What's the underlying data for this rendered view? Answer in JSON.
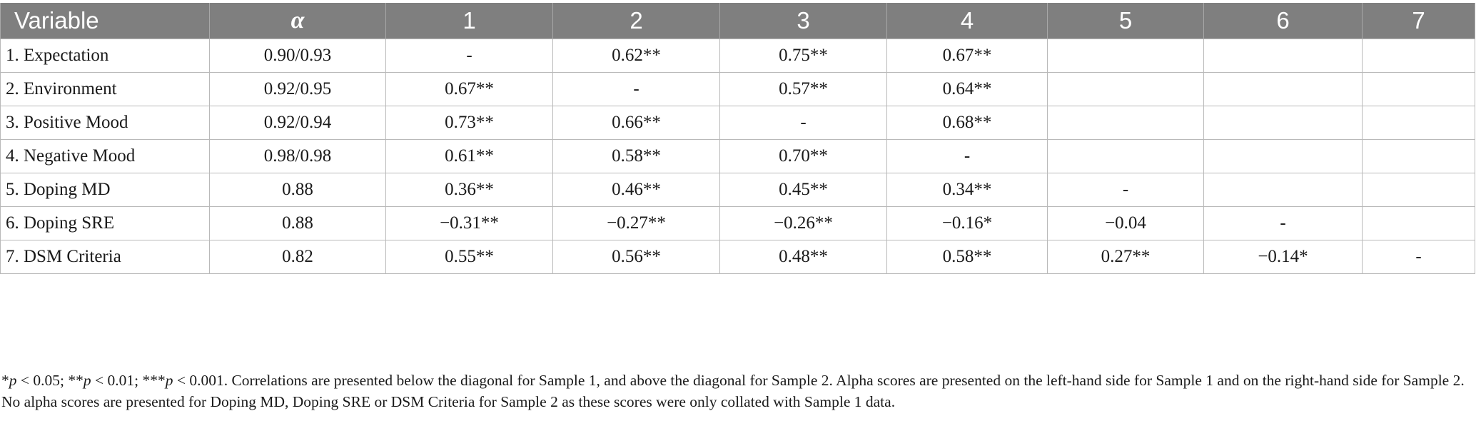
{
  "table": {
    "headers": [
      "Variable",
      "α",
      "1",
      "2",
      "3",
      "4",
      "5",
      "6",
      "7"
    ],
    "rows": [
      [
        "1.  Expectation",
        "0.90/0.93",
        "-",
        "0.62**",
        "0.75**",
        "0.67**",
        "",
        "",
        ""
      ],
      [
        "2.  Environment",
        "0.92/0.95",
        "0.67**",
        "-",
        "0.57**",
        "0.64**",
        "",
        "",
        ""
      ],
      [
        "3.  Positive Mood",
        "0.92/0.94",
        "0.73**",
        "0.66**",
        "-",
        "0.68**",
        "",
        "",
        ""
      ],
      [
        "4.  Negative Mood",
        "0.98/0.98",
        "0.61**",
        "0.58**",
        "0.70**",
        "-",
        "",
        "",
        ""
      ],
      [
        "5.  Doping MD",
        "0.88",
        "0.36**",
        "0.46**",
        "0.45**",
        "0.34**",
        "-",
        "",
        ""
      ],
      [
        "6.  Doping SRE",
        "0.88",
        "−0.31**",
        "−0.27**",
        "−0.26**",
        "−0.16*",
        "−0.04",
        "-",
        ""
      ],
      [
        "7.  DSM Criteria",
        "0.82",
        "0.55**",
        "0.56**",
        "0.48**",
        "0.58**",
        "0.27**",
        "−0.14*",
        "-"
      ]
    ]
  },
  "note": {
    "p_prefix_1": "*",
    "p_1": "p",
    "p_text_1": " < 0.05; **",
    "p_2": "p",
    "p_text_2": " < 0.01; ***",
    "p_3": "p",
    "p_text_3": " < 0.001. Correlations are presented below the diagonal for Sample 1, and above the diagonal for Sample 2. Alpha scores are presented on the left-hand side for Sample 1 and on the right-hand side for Sample 2. No alpha scores are presented for Doping MD, Doping SRE or DSM Criteria for Sample 2 as these scores were only collated with Sample 1 data."
  },
  "colors": {
    "header_bg": "#7f7f7f",
    "header_text": "#ffffff",
    "grid": "#b9b9b9"
  }
}
